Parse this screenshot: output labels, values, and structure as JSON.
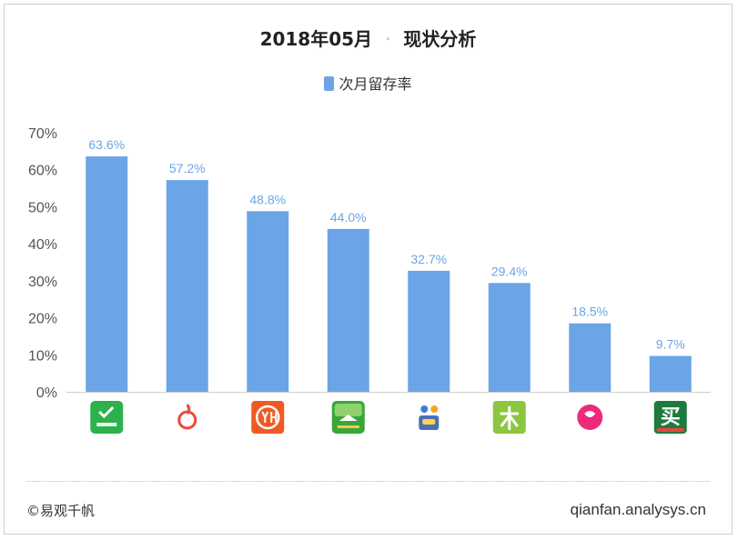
{
  "header": {
    "title_date": "2018年05月",
    "title_sep": "·",
    "title_text": "现状分析"
  },
  "legend": {
    "label": "次月留存率"
  },
  "colors": {
    "bar": "#6ba4e7",
    "label": "#6ba4e7",
    "axis": "#555555",
    "grid": "#e8e8e8"
  },
  "chart_data": {
    "type": "bar",
    "title": "2018年05月 · 现状分析",
    "categories": [
      "app-1",
      "app-2",
      "app-3",
      "app-4",
      "app-5",
      "app-6",
      "app-7",
      "app-8"
    ],
    "category_icons": [
      "green-check-app-icon",
      "orange-loop-app-icon",
      "yh-app-icon",
      "green-bird-app-icon",
      "kids-app-icon",
      "mu-app-icon",
      "pink-round-app-icon",
      "mai-app-icon"
    ],
    "series": [
      {
        "name": "次月留存率",
        "values": [
          63.6,
          57.2,
          48.8,
          44.0,
          32.7,
          29.4,
          18.5,
          9.7
        ]
      }
    ],
    "value_labels": [
      "63.6%",
      "57.2%",
      "48.8%",
      "44.0%",
      "32.7%",
      "29.4%",
      "18.5%",
      "9.7%"
    ],
    "y_ticks": [
      "0%",
      "10%",
      "20%",
      "30%",
      "40%",
      "50%",
      "60%",
      "70%"
    ],
    "ylim": [
      0,
      70
    ],
    "grid": false,
    "legend_position": "top-center"
  },
  "footer": {
    "source": "©易观千帆",
    "site": "qianfan.analysys.cn"
  }
}
